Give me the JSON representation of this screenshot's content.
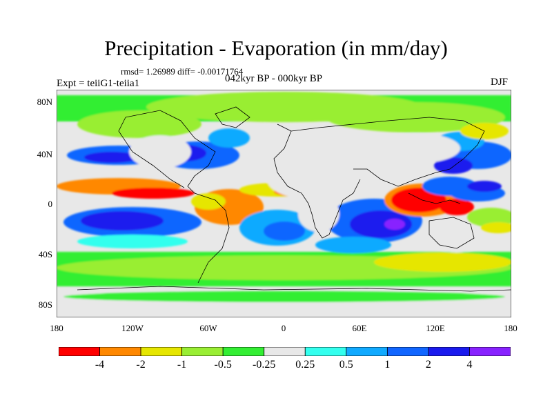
{
  "map": {
    "title": "Precipitation - Evaporation (in mm/day)",
    "stats": "rmsd= 1.26989 diff= -0.00171764",
    "experiment": "Expt = teiiG1-teiia1",
    "period": "042kyr BP - 000kyr BP",
    "season": "DJF",
    "lat_labels": [
      "80N",
      "40N",
      "0",
      "40S",
      "80S"
    ],
    "lon_labels": [
      "180",
      "120W",
      "60W",
      "0",
      "60E",
      "120E",
      "180"
    ]
  },
  "colorbar": {
    "labels": [
      "-4",
      "-2",
      "-1",
      "-0.5",
      "-0.25",
      "0.25",
      "0.5",
      "1",
      "2",
      "4"
    ],
    "colors": [
      "#ff0000",
      "#ff8800",
      "#e6e600",
      "#99ee33",
      "#33ee33",
      "#e8e8e8",
      "#33ffee",
      "#11aaff",
      "#1166ff",
      "#1a1aee",
      "#8822ff"
    ]
  }
}
